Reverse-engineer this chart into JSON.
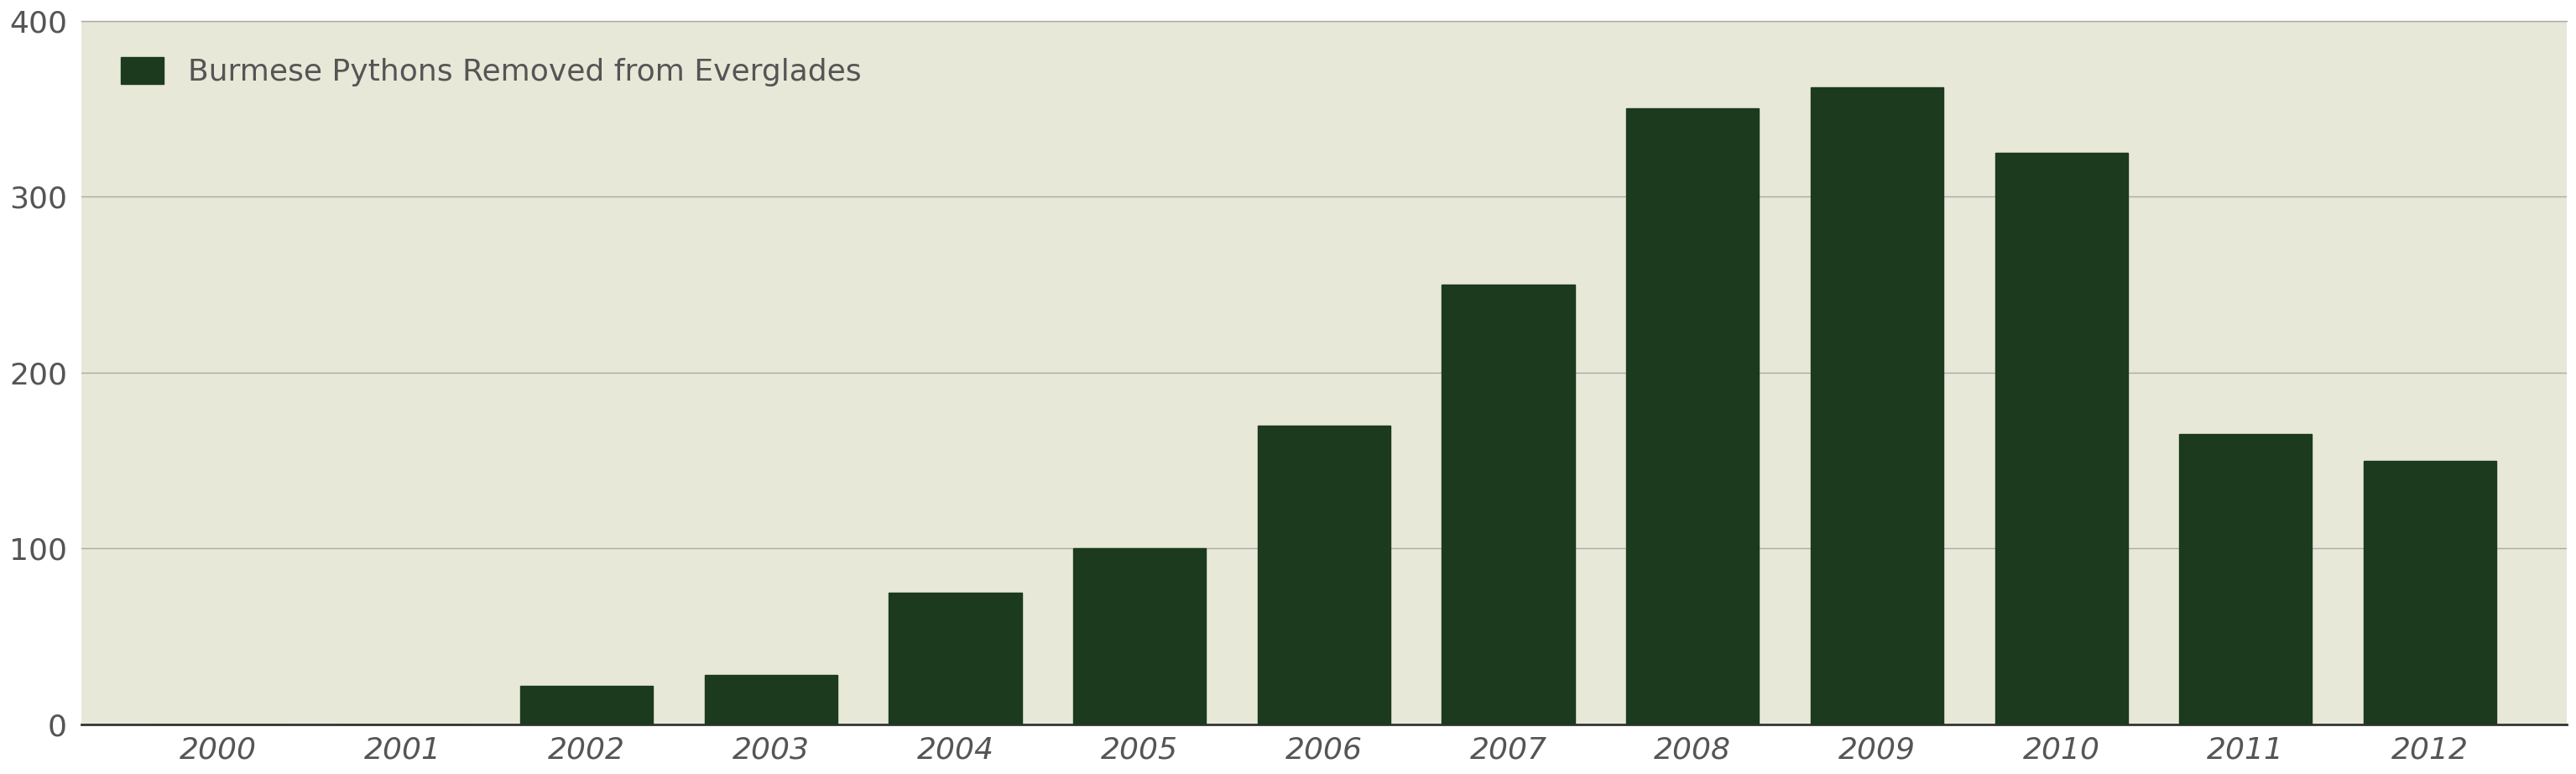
{
  "years": [
    2000,
    2001,
    2002,
    2003,
    2004,
    2005,
    2006,
    2007,
    2008,
    2009,
    2010,
    2011,
    2012
  ],
  "values": [
    0,
    0,
    22,
    28,
    75,
    100,
    170,
    250,
    350,
    362,
    325,
    165,
    150
  ],
  "bar_color": "#1b3a1e",
  "plot_bg_color": "#e8e8d8",
  "fig_bg_color": "#ffffff",
  "legend_label": "Burmese Pythons Removed from Everglades",
  "ylim": [
    0,
    400
  ],
  "yticks": [
    0,
    100,
    200,
    300,
    400
  ],
  "grid_color": "#aaaaaa",
  "tick_label_color": "#555555",
  "bar_width": 0.72,
  "legend_fontsize": 26,
  "tick_fontsize": 26
}
